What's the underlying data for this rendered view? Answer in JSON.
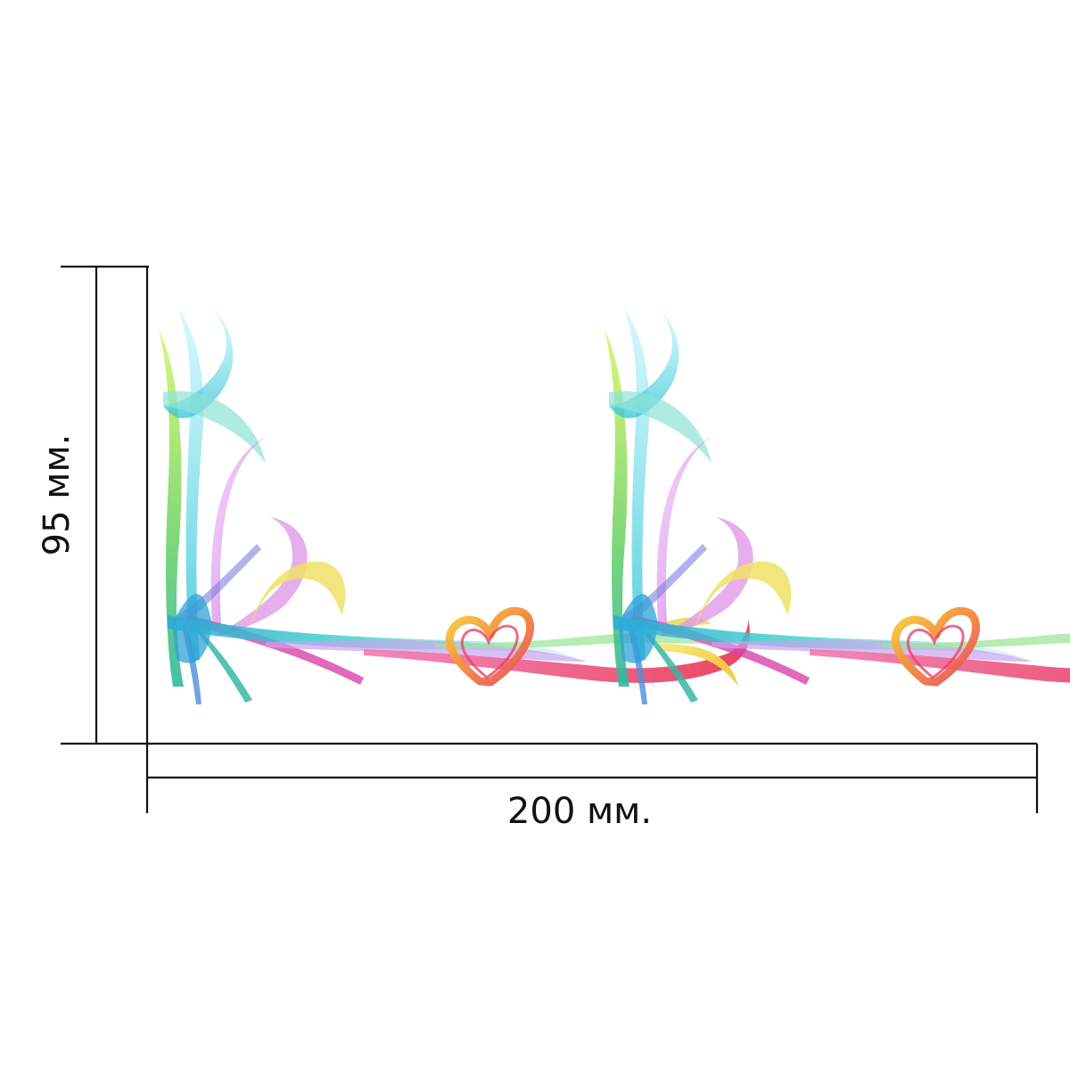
{
  "dimensions": {
    "height_label": "95 мм.",
    "width_label": "200 мм."
  },
  "panels": [
    {
      "motif": "ribbon-corner-with-heart"
    },
    {
      "motif": "ribbon-corner-with-heart"
    }
  ],
  "colors": {
    "background": "#ffffff",
    "dimension_lines": "#111111",
    "ribbon_cyan": "#41d6e6",
    "ribbon_green": "#7ed957",
    "ribbon_pink": "#ea4f8f",
    "ribbon_magenta": "#d98ae8",
    "ribbon_yellow": "#f1e04b",
    "ribbon_orange": "#f29a3c"
  }
}
